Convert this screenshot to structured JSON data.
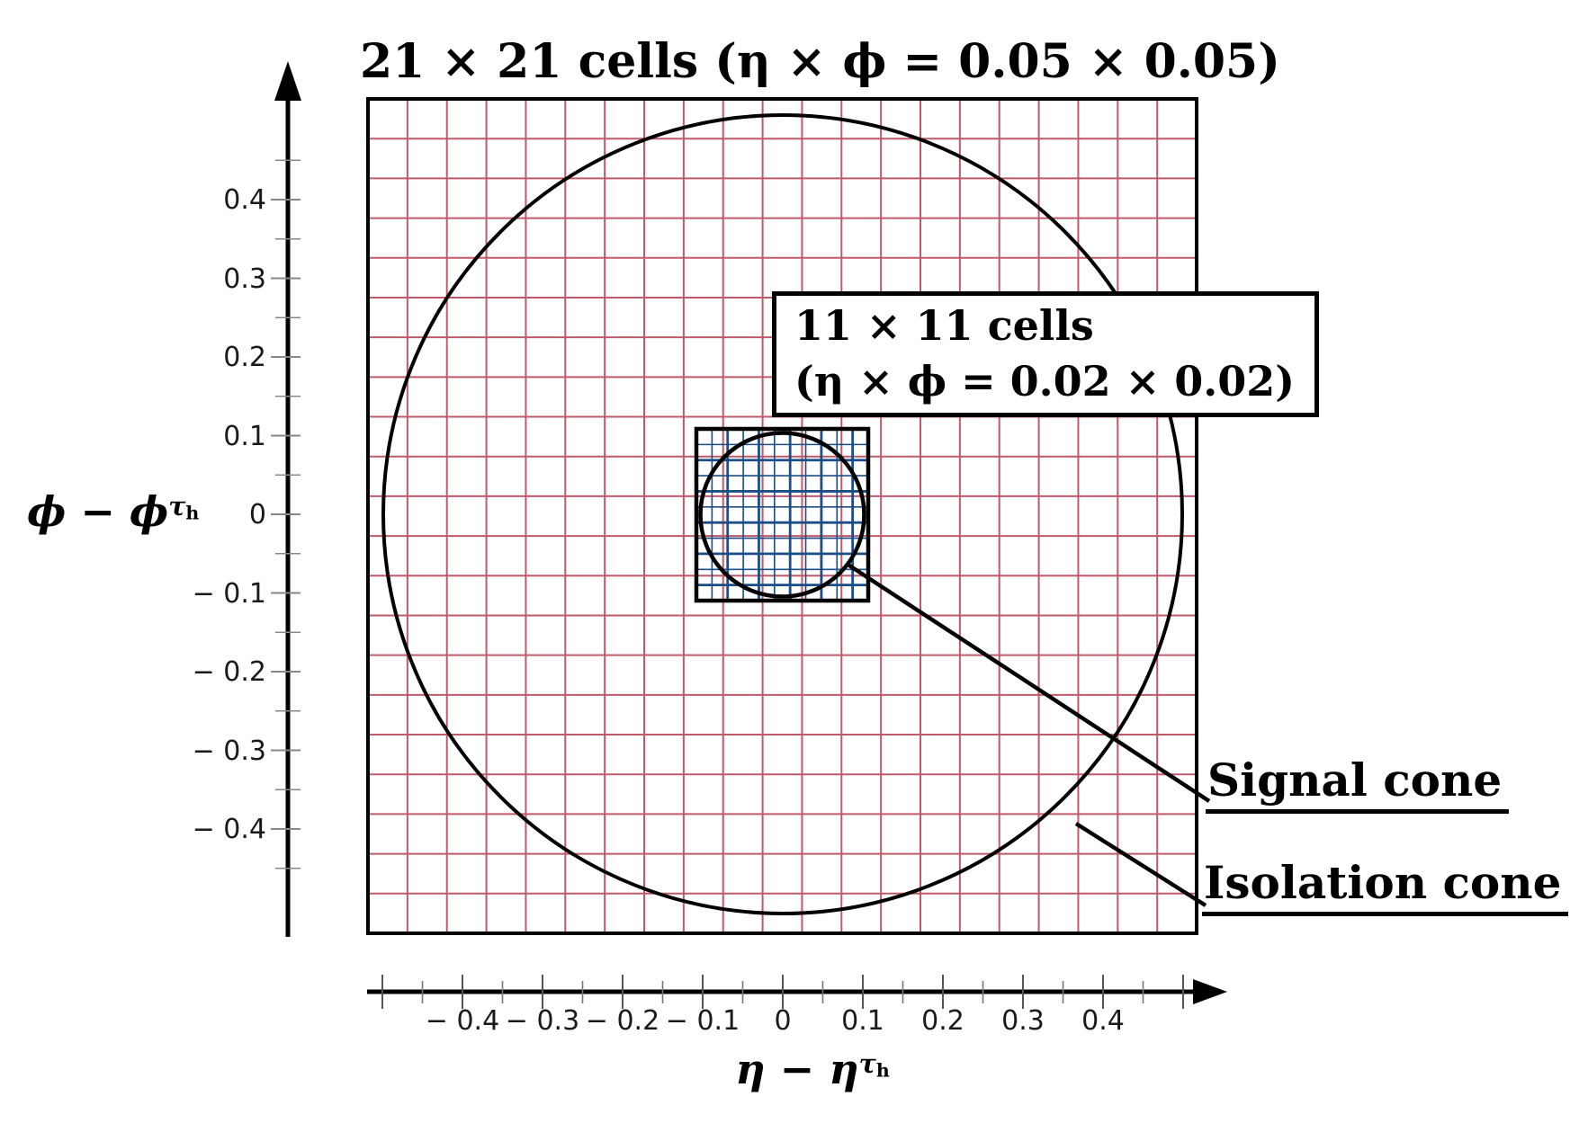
{
  "figure": {
    "title": "21 × 21 cells (η × ϕ = 0.05 × 0.05)",
    "inset": {
      "line1": "11 × 11 cells",
      "line2": "(η × ϕ = 0.02 × 0.02)"
    },
    "cone_labels": {
      "signal": "Signal cone",
      "isolation": "Isolation cone"
    },
    "outer_grid": {
      "n": 21,
      "cell_eta": "0.05",
      "cell_phi": "0.05",
      "color": "#c05a6b"
    },
    "inner_grid": {
      "n": 11,
      "cell_eta": "0.02",
      "cell_phi": "0.02",
      "color": "#1b4e86"
    },
    "x_axis": {
      "label_base": "η − η",
      "label_sup": "τ",
      "label_sup_sub": "h",
      "ticks": [
        "− 0.4",
        "− 0.3",
        "− 0.2",
        "− 0.1",
        "0",
        "0.1",
        "0.2",
        "0.3",
        "0.4"
      ]
    },
    "y_axis": {
      "label_base": "ϕ − ϕ",
      "label_sup": "τ",
      "label_sup_sub": "h",
      "ticks": [
        "0.4",
        "0.3",
        "0.2",
        "0.1",
        "0",
        "− 0.1",
        "− 0.2",
        "− 0.3",
        "− 0.4"
      ]
    }
  }
}
